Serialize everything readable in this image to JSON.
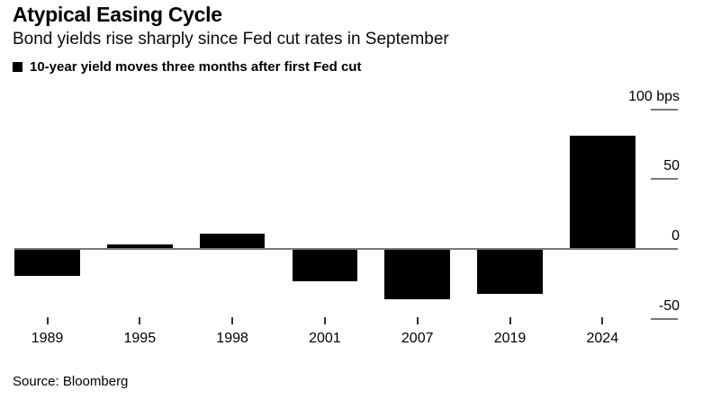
{
  "header": {
    "title": "Atypical Easing Cycle",
    "subtitle": "Bond yields rise sharply since Fed cut rates in September"
  },
  "legend": {
    "swatch_color": "#000000",
    "label": "10-year yield moves three months after first Fed cut"
  },
  "footer": {
    "source": "Source: Bloomberg"
  },
  "colors": {
    "bar": "#000000",
    "axis_line": "#77787b",
    "ytick_line": "#77787b",
    "xtick_mark": "#333333",
    "text": "#000000"
  },
  "chart_data": {
    "type": "bar",
    "title": "Atypical Easing Cycle",
    "subtitle": "Bond yields rise sharply since Fed cut rates in September",
    "legend_label": "10-year yield moves three months after first Fed cut",
    "categories": [
      "1989",
      "1995",
      "1998",
      "2001",
      "2007",
      "2019",
      "2024"
    ],
    "values": [
      -19,
      3,
      11,
      -23,
      -36,
      -32,
      81
    ],
    "unit": "bps",
    "ylim": [
      -50,
      100
    ],
    "yticks": [
      {
        "value": 100,
        "label": "100 bps"
      },
      {
        "value": 50,
        "label": "50"
      },
      {
        "value": 0,
        "label": "0"
      },
      {
        "value": -50,
        "label": "-50"
      }
    ],
    "grid": false,
    "legend_position": "top-left",
    "axis_side": "right",
    "source": "Source: Bloomberg"
  }
}
